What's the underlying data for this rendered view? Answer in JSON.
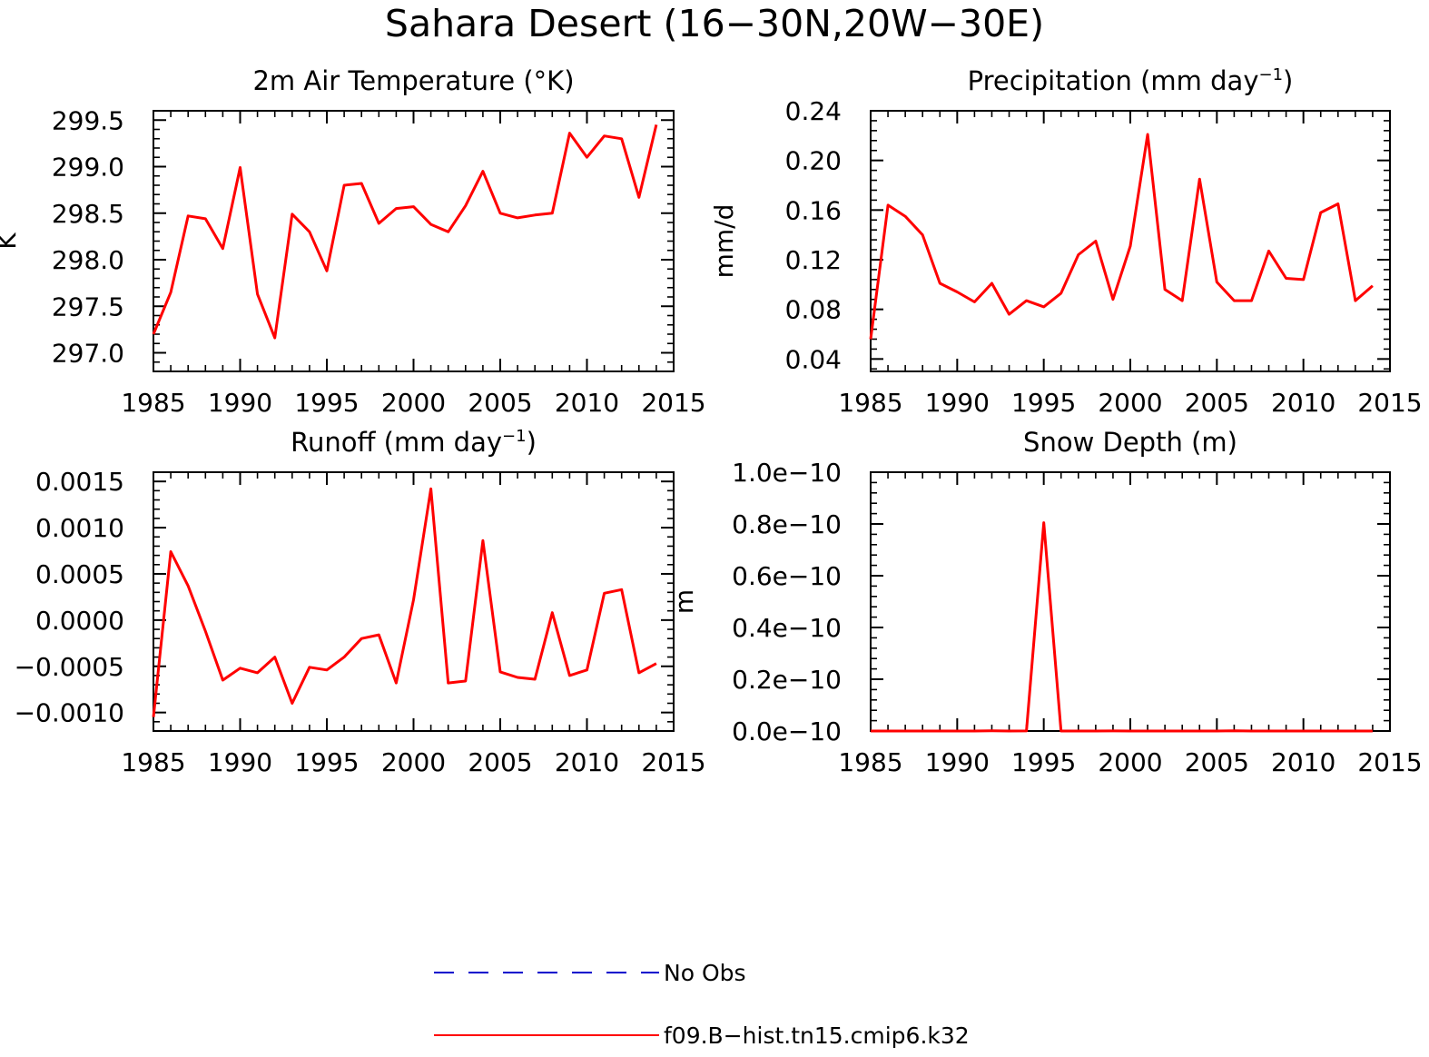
{
  "figure_title": "Sahara Desert (16−30N,20W−30E)",
  "chart_data": [
    {
      "type": "line",
      "title": "2m Air Temperature (°K)",
      "title_sup": "",
      "title_end": "",
      "ylabel": "K",
      "xlim": [
        1985,
        2015
      ],
      "ylim": [
        296.8,
        299.6
      ],
      "xticks": [
        1985,
        1990,
        1995,
        2000,
        2005,
        2010,
        2015
      ],
      "yticks": [
        297.0,
        297.5,
        298.0,
        298.5,
        299.0,
        299.5
      ],
      "ytick_labels": [
        "297.0",
        "297.5",
        "298.0",
        "298.5",
        "299.0",
        "299.5"
      ],
      "series": [
        {
          "name": "f09.B−hist.tn15.cmip6.k32",
          "color": "#ff0000",
          "x": [
            1985,
            1986,
            1987,
            1988,
            1989,
            1990,
            1991,
            1992,
            1993,
            1994,
            1995,
            1996,
            1997,
            1998,
            1999,
            2000,
            2001,
            2002,
            2003,
            2004,
            2005,
            2006,
            2007,
            2008,
            2009,
            2010,
            2011,
            2012,
            2013,
            2014
          ],
          "y": [
            297.2,
            297.65,
            298.47,
            298.44,
            298.12,
            298.99,
            297.63,
            297.16,
            298.49,
            298.3,
            297.88,
            298.8,
            298.82,
            298.39,
            298.55,
            298.57,
            298.38,
            298.3,
            298.58,
            298.95,
            298.5,
            298.45,
            298.48,
            298.5,
            299.36,
            299.1,
            299.33,
            299.3,
            298.67,
            299.45
          ]
        }
      ]
    },
    {
      "type": "line",
      "title": "Precipitation (mm day",
      "title_sup": "−1",
      "title_end": ")",
      "ylabel": "mm/d",
      "xlim": [
        1985,
        2015
      ],
      "ylim": [
        0.03,
        0.24
      ],
      "xticks": [
        1985,
        1990,
        1995,
        2000,
        2005,
        2010,
        2015
      ],
      "yticks": [
        0.04,
        0.08,
        0.12,
        0.16,
        0.2,
        0.24
      ],
      "ytick_labels": [
        "0.04",
        "0.08",
        "0.12",
        "0.16",
        "0.20",
        "0.24"
      ],
      "series": [
        {
          "name": "f09.B−hist.tn15.cmip6.k32",
          "color": "#ff0000",
          "x": [
            1985,
            1986,
            1987,
            1988,
            1989,
            1990,
            1991,
            1992,
            1993,
            1994,
            1995,
            1996,
            1997,
            1998,
            1999,
            2000,
            2001,
            2002,
            2003,
            2004,
            2005,
            2006,
            2007,
            2008,
            2009,
            2010,
            2011,
            2012,
            2013,
            2014
          ],
          "y": [
            0.056,
            0.164,
            0.155,
            0.14,
            0.101,
            0.094,
            0.086,
            0.101,
            0.076,
            0.087,
            0.082,
            0.093,
            0.124,
            0.135,
            0.088,
            0.131,
            0.221,
            0.096,
            0.087,
            0.185,
            0.102,
            0.087,
            0.087,
            0.127,
            0.105,
            0.104,
            0.158,
            0.165,
            0.087,
            0.099
          ]
        }
      ]
    },
    {
      "type": "line",
      "title": "Runoff (mm day",
      "title_sup": "−1",
      "title_end": ")",
      "ylabel": "",
      "xlim": [
        1985,
        2015
      ],
      "ylim": [
        -0.0012,
        0.0016
      ],
      "xticks": [
        1985,
        1990,
        1995,
        2000,
        2005,
        2010,
        2015
      ],
      "yticks": [
        -0.001,
        -0.0005,
        0.0,
        0.0005,
        0.001,
        0.0015
      ],
      "ytick_labels": [
        "−0.0010",
        "−0.0005",
        "0.0000",
        "0.0005",
        "0.0010",
        "0.0015"
      ],
      "series": [
        {
          "name": "f09.B−hist.tn15.cmip6.k32",
          "color": "#ff0000",
          "x": [
            1985,
            1986,
            1987,
            1988,
            1989,
            1990,
            1991,
            1992,
            1993,
            1994,
            1995,
            1996,
            1997,
            1998,
            1999,
            2000,
            2001,
            2002,
            2003,
            2004,
            2005,
            2006,
            2007,
            2008,
            2009,
            2010,
            2011,
            2012,
            2013,
            2014
          ],
          "y": [
            -0.00105,
            0.00074,
            0.00037,
            -0.00012,
            -0.00065,
            -0.00052,
            -0.00057,
            -0.0004,
            -0.0009,
            -0.00051,
            -0.00054,
            -0.0004,
            -0.0002,
            -0.00016,
            -0.00068,
            0.00022,
            0.00142,
            -0.00068,
            -0.00066,
            0.00086,
            -0.00056,
            -0.00062,
            -0.00064,
            8e-05,
            -0.0006,
            -0.00054,
            0.00029,
            0.00033,
            -0.00057,
            -0.00047
          ]
        }
      ]
    },
    {
      "type": "line",
      "title": "Snow Depth (m)",
      "title_sup": "",
      "title_end": "",
      "ylabel": "m",
      "xlim": [
        1985,
        2015
      ],
      "ylim": [
        0,
        1e-10
      ],
      "xticks": [
        1985,
        1990,
        1995,
        2000,
        2005,
        2010,
        2015
      ],
      "yticks": [
        0,
        2e-11,
        4e-11,
        6e-11,
        8e-11,
        1e-10
      ],
      "ytick_labels": [
        "0.0e−10",
        "0.2e−10",
        "0.4e−10",
        "0.6e−10",
        "0.8e−10",
        "1.0e−10"
      ],
      "series": [
        {
          "name": "f09.B−hist.tn15.cmip6.k32",
          "color": "#ff0000",
          "x": [
            1985,
            1986,
            1987,
            1988,
            1989,
            1990,
            1991,
            1992,
            1993,
            1994,
            1995,
            1996,
            1997,
            1998,
            1999,
            2000,
            2001,
            2002,
            2003,
            2004,
            2005,
            2006,
            2007,
            2008,
            2009,
            2010,
            2011,
            2012,
            2013,
            2014
          ],
          "y": [
            0,
            0,
            0,
            0,
            0,
            0,
            0,
            8e-14,
            0,
            5e-14,
            8.05e-11,
            0,
            0,
            0,
            3e-14,
            0,
            0,
            0,
            0,
            0,
            0,
            1.2e-13,
            0,
            0,
            0,
            0,
            0,
            0,
            0,
            0
          ]
        }
      ]
    }
  ],
  "legend": {
    "items": [
      {
        "label": "No Obs",
        "color": "#0000cc",
        "dash": "dashed"
      },
      {
        "label": "f09.B−hist.tn15.cmip6.k32",
        "color": "#ff0000",
        "dash": "solid"
      }
    ]
  }
}
